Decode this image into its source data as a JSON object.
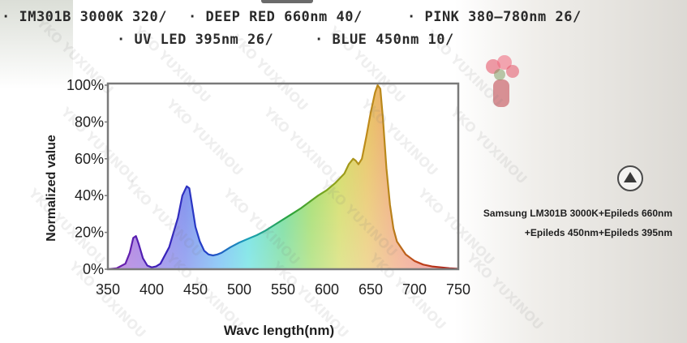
{
  "legend": {
    "line1": [
      {
        "text": "· IM301B  3000K  320/"
      },
      {
        "text": "· DEEP  RED  660nm  40/"
      },
      {
        "text": "· PINK  380–780nm  26/"
      }
    ],
    "line2": [
      {
        "text": "· UV  LED  395nm  26/"
      },
      {
        "text": "· BLUE  450nm  10/"
      }
    ]
  },
  "caption": {
    "line1": "Samsung LM301B 3000K+Epileds 660nm",
    "line2": "+Epileds 450nm+Epileds 395nm"
  },
  "watermark": "YKO YUXINOU",
  "chart_data": {
    "type": "area",
    "title": "",
    "xlabel": "Wavc length(nm)",
    "ylabel": "Normalized value",
    "xlim": [
      350,
      750
    ],
    "ylim": [
      0,
      100
    ],
    "x_ticks": [
      350,
      400,
      450,
      500,
      550,
      600,
      650,
      700,
      750
    ],
    "y_ticks": [
      {
        "value": 0,
        "label": "0%"
      },
      {
        "value": 20,
        "label": "20%"
      },
      {
        "value": 40,
        "label": "40%"
      },
      {
        "value": 60,
        "label": "60%"
      },
      {
        "value": 80,
        "label": "80%"
      },
      {
        "value": 100,
        "label": "100%"
      }
    ],
    "grid": false,
    "fill": "spectrum",
    "series": [
      {
        "x": [
          350,
          360,
          370,
          375,
          379,
          382,
          385,
          390,
          395,
          400,
          405,
          410,
          420,
          430,
          435,
          440,
          443,
          446,
          450,
          455,
          460,
          465,
          470,
          475,
          480,
          490,
          500,
          510,
          520,
          530,
          540,
          550,
          560,
          570,
          580,
          590,
          600,
          610,
          620,
          625,
          630,
          633,
          636,
          640,
          645,
          650,
          655,
          658,
          661,
          664,
          668,
          672,
          676,
          680,
          690,
          700,
          710,
          720,
          730,
          740,
          750
        ],
        "y": [
          0,
          0.5,
          3,
          9,
          17,
          18,
          14,
          6,
          2,
          1,
          1.5,
          3,
          12,
          28,
          40,
          45,
          44,
          35,
          23,
          15,
          10,
          8,
          7.5,
          8,
          9,
          12,
          14.5,
          16.5,
          18.5,
          21,
          24,
          27,
          30,
          33,
          36.5,
          40,
          43,
          47,
          52,
          57,
          60,
          59,
          57,
          60,
          72,
          85,
          96,
          100,
          98,
          82,
          55,
          35,
          22,
          15,
          8,
          4.5,
          2.5,
          1.5,
          1,
          0.5,
          0.2
        ]
      }
    ]
  }
}
